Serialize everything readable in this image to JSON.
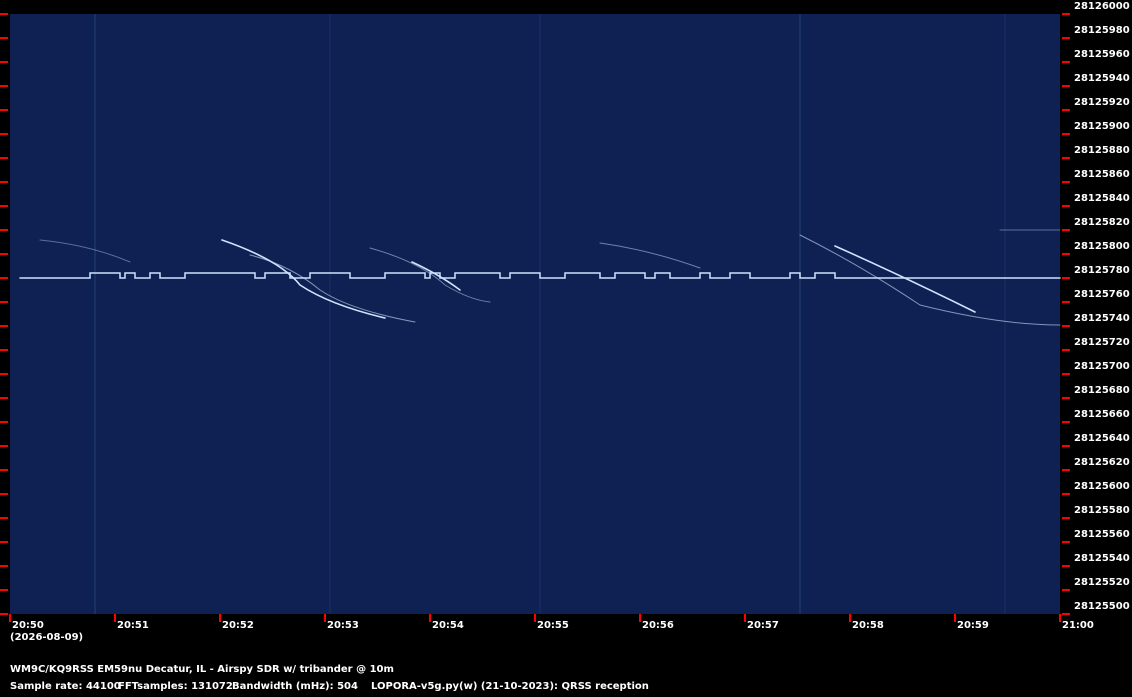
{
  "chart_data": {
    "type": "spectrogram",
    "subtitle": "(2026-08-09)",
    "x_ticks": [
      "20:50",
      "20:51",
      "20:52",
      "20:53",
      "20:54",
      "20:55",
      "20:56",
      "20:57",
      "20:58",
      "20:59",
      "21:00"
    ],
    "ylim": [
      28125500,
      28126000
    ],
    "yticks": [
      28125500,
      28125520,
      28125540,
      28125560,
      28125580,
      28125600,
      28125620,
      28125640,
      28125660,
      28125680,
      28125700,
      28125720,
      28125740,
      28125760,
      28125780,
      28125800,
      28125820,
      28125840,
      28125860,
      28125880,
      28125900,
      28125920,
      28125940,
      28125960,
      28125980,
      28126000
    ],
    "tick_color": "#ff0000",
    "background_color": "#0e2152",
    "footer": [
      "WM9C/KQ9RSS EM59nu Decatur, IL - Airspy SDR w/ tribander @ 10m"
    ],
    "footer_fields": [
      "Sample rate: 44100",
      "FFTsamples: 131072",
      "Bandwidth (mHz): 504",
      "LOPORA-v5g.py(w) (21-10-2023): QRSS reception"
    ]
  }
}
